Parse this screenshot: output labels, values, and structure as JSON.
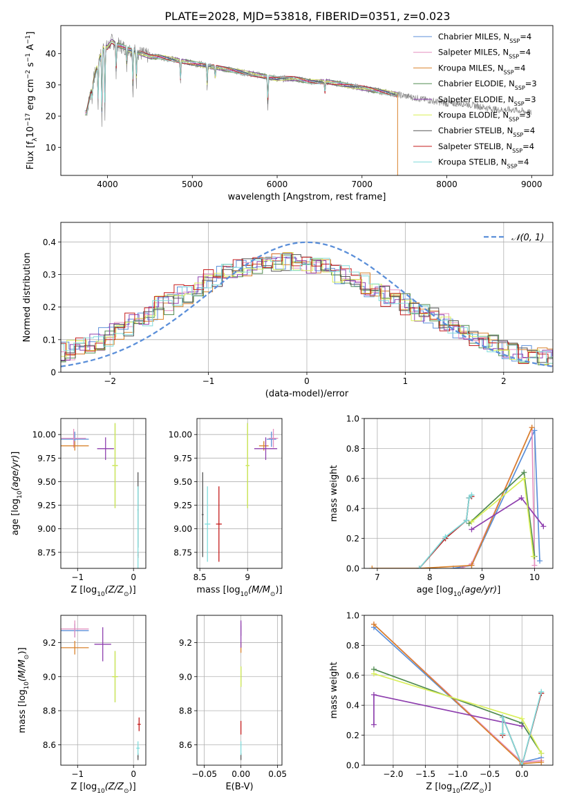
{
  "figure_title": "PLATE=2028, MJD=53818, FIBERID=0351, z=0.023",
  "colors": {
    "chabrier_miles": "#5b8fd9",
    "salpeter_miles": "#e58fbf",
    "kroupa_miles": "#d9822b",
    "chabrier_elodie": "#4f8a4f",
    "salpeter_elodie": "#8e3fae",
    "kroupa_elodie": "#d9ef5a",
    "chabrier_stelib": "#555555",
    "salpeter_stelib": "#c41a1a",
    "kroupa_stelib": "#7fdcdc",
    "normal_curve": "#5b8fd9",
    "grid": "#b0b0b0"
  },
  "chart_data": [
    {
      "id": "spectrum",
      "type": "line",
      "title": "PLATE=2028, MJD=53818, FIBERID=0351, z=0.023",
      "xlabel": "wavelength [Angstrom, rest frame]",
      "ylabel": "Flux [f_λ 10^-17 erg cm^-2 s^-1 A^-1]",
      "xlim": [
        3450,
        9250
      ],
      "ylim": [
        1,
        49
      ],
      "xticks": [
        4000,
        5000,
        6000,
        7000,
        8000,
        9000
      ],
      "yticks": [
        10,
        20,
        30,
        40
      ],
      "grid": false,
      "legend_position": "top-right",
      "legend": [
        {
          "base": "Chabrier MILES, N",
          "sub": "SSP",
          "tail": "=4",
          "key": "chabrier_miles"
        },
        {
          "base": "Salpeter MILES, N",
          "sub": "SSP",
          "tail": "=4",
          "key": "salpeter_miles"
        },
        {
          "base": "Kroupa MILES, N",
          "sub": "SSP",
          "tail": "=4",
          "key": "kroupa_miles"
        },
        {
          "base": "Chabrier ELODIE, N",
          "sub": "SSP",
          "tail": "=3",
          "key": "chabrier_elodie"
        },
        {
          "base": "Salpeter ELODIE, N",
          "sub": "SSP",
          "tail": "=3",
          "key": "salpeter_elodie"
        },
        {
          "base": "Kroupa ELODIE, N",
          "sub": "SSP",
          "tail": "=3",
          "key": "kroupa_elodie"
        },
        {
          "base": "Chabrier STELIB, N",
          "sub": "SSP",
          "tail": "=4",
          "key": "chabrier_stelib"
        },
        {
          "base": "Salpeter STELIB, N",
          "sub": "SSP",
          "tail": "=4",
          "key": "salpeter_stelib"
        },
        {
          "base": "Kroupa STELIB, N",
          "sub": "SSP",
          "tail": "=4",
          "key": "kroupa_stelib"
        }
      ],
      "continuum": [
        [
          3750,
          21
        ],
        [
          3800,
          27
        ],
        [
          3850,
          33
        ],
        [
          3900,
          38
        ],
        [
          3950,
          42
        ],
        [
          4000,
          42
        ],
        [
          4050,
          44
        ],
        [
          4100,
          43
        ],
        [
          4200,
          42
        ],
        [
          4300,
          41
        ],
        [
          4400,
          40
        ],
        [
          4500,
          39
        ],
        [
          4600,
          39
        ],
        [
          4800,
          38
        ],
        [
          5000,
          37
        ],
        [
          5200,
          36
        ],
        [
          5400,
          35
        ],
        [
          5600,
          34
        ],
        [
          5800,
          33
        ],
        [
          6000,
          32
        ],
        [
          6200,
          32
        ],
        [
          6400,
          31
        ],
        [
          6600,
          31
        ],
        [
          6800,
          30
        ],
        [
          7000,
          29
        ],
        [
          7200,
          28
        ],
        [
          7400,
          27
        ],
        [
          7600,
          26
        ],
        [
          7800,
          25
        ],
        [
          8000,
          24
        ],
        [
          8200,
          24
        ],
        [
          8400,
          23
        ],
        [
          8600,
          22
        ],
        [
          8800,
          22
        ],
        [
          9000,
          21
        ]
      ],
      "absorption_features": [
        [
          3820,
          4
        ],
        [
          3889,
          14
        ],
        [
          3934,
          24
        ],
        [
          3969,
          22
        ],
        [
          4102,
          10
        ],
        [
          4227,
          6
        ],
        [
          4300,
          14
        ],
        [
          4341,
          10
        ],
        [
          4861,
          7
        ],
        [
          5175,
          7
        ],
        [
          5270,
          4
        ],
        [
          5890,
          10
        ],
        [
          6563,
          4
        ]
      ],
      "model_wavelength_range": [
        3730,
        7420
      ],
      "observed_wavelength_range": [
        3750,
        9000
      ]
    },
    {
      "id": "residuals",
      "type": "histogram",
      "xlabel": "(data-model)/error",
      "ylabel": "Normed distribution",
      "xlim": [
        -2.5,
        2.5
      ],
      "ylim": [
        0,
        0.46
      ],
      "xticks": [
        -2,
        -1,
        0,
        1,
        2
      ],
      "yticks": [
        0.0,
        0.1,
        0.2,
        0.3,
        0.4
      ],
      "grid": true,
      "legend_position": "top-right",
      "legend": [
        {
          "label": "𝒩(0, 1)",
          "key": "normal_curve",
          "style": "dashed"
        }
      ],
      "bin_width": 0.1,
      "reference_profile": [
        0.04,
        0.045,
        0.05,
        0.055,
        0.06,
        0.065,
        0.075,
        0.085,
        0.095,
        0.11,
        0.125,
        0.14,
        0.155,
        0.17,
        0.19,
        0.205,
        0.225,
        0.24,
        0.26,
        0.275,
        0.29,
        0.305,
        0.315,
        0.325,
        0.33,
        0.335,
        0.34,
        0.34,
        0.34,
        0.335,
        0.33,
        0.325,
        0.315,
        0.3,
        0.29,
        0.275,
        0.26,
        0.245,
        0.23,
        0.215,
        0.2,
        0.185,
        0.17,
        0.155,
        0.14,
        0.125,
        0.11,
        0.1,
        0.09,
        0.08,
        0.07,
        0.06,
        0.055,
        0.05,
        0.045,
        0.04,
        0.035,
        0.03,
        0.025,
        0.02
      ]
    },
    {
      "id": "age_vs_Z",
      "type": "errorbar",
      "xlabel": "Z [log10(Z/Z⊙)]",
      "ylabel": "age  [log10(age/yr)]",
      "xlim": [
        -1.3,
        0.22
      ],
      "ylim": [
        8.58,
        10.17
      ],
      "xticks": [
        -1,
        0
      ],
      "yticks": [
        8.75,
        9.0,
        9.25,
        9.5,
        9.75,
        10.0
      ],
      "ytick_labels": [
        "8.75",
        "9.00",
        "9.25",
        "9.50",
        "9.75",
        "10.00"
      ],
      "grid": true,
      "points": [
        {
          "key": "chabrier_miles",
          "x": -1.05,
          "y": 9.95,
          "xerr": 0.25,
          "yerr": 0.08
        },
        {
          "key": "salpeter_miles",
          "x": -1.07,
          "y": 9.96,
          "xerr": 0.22,
          "yerr": 0.1
        },
        {
          "key": "kroupa_miles",
          "x": -1.05,
          "y": 9.88,
          "xerr": 0.25,
          "yerr": 0.05
        },
        {
          "key": "chabrier_elodie",
          "x": -0.33,
          "y": 9.67,
          "xerr": 0.05,
          "yerr": 0.45
        },
        {
          "key": "salpeter_elodie",
          "x": -0.5,
          "y": 9.85,
          "xerr": 0.15,
          "yerr": 0.12
        },
        {
          "key": "kroupa_elodie",
          "x": -0.33,
          "y": 9.67,
          "xerr": 0.05,
          "yerr": 0.45
        },
        {
          "key": "chabrier_stelib",
          "x": 0.08,
          "y": 9.2,
          "xerr": 0.01,
          "yerr": 0.4
        },
        {
          "key": "salpeter_stelib",
          "x": 0.08,
          "y": 8.72,
          "xerr": 0.01,
          "yerr": 0.03
        },
        {
          "key": "kroupa_stelib",
          "x": 0.08,
          "y": 9.0,
          "xerr": 0.01,
          "yerr": 0.45
        }
      ]
    },
    {
      "id": "age_vs_mass",
      "type": "errorbar",
      "xlabel": "mass [log10(M/M⊙)]",
      "ylabel": "",
      "xlim": [
        8.47,
        9.36
      ],
      "ylim": [
        8.58,
        10.17
      ],
      "xticks": [
        8.5,
        9.0
      ],
      "yticks": [
        8.75,
        9.0,
        9.25,
        9.5,
        9.75,
        10.0
      ],
      "ytick_labels": [
        "8.75",
        "9.00",
        "9.25",
        "9.50",
        "9.75",
        "10.00"
      ],
      "grid": true,
      "points": [
        {
          "key": "chabrier_miles",
          "x": 9.25,
          "y": 9.95,
          "xerr": 0.05,
          "yerr": 0.08
        },
        {
          "key": "salpeter_miles",
          "x": 9.27,
          "y": 9.96,
          "xerr": 0.05,
          "yerr": 0.1
        },
        {
          "key": "kroupa_miles",
          "x": 9.17,
          "y": 9.88,
          "xerr": 0.05,
          "yerr": 0.05
        },
        {
          "key": "chabrier_elodie",
          "x": 9.0,
          "y": 9.67,
          "xerr": 0.02,
          "yerr": 0.45
        },
        {
          "key": "salpeter_elodie",
          "x": 9.19,
          "y": 9.85,
          "xerr": 0.12,
          "yerr": 0.12
        },
        {
          "key": "kroupa_elodie",
          "x": 9.0,
          "y": 9.67,
          "xerr": 0.02,
          "yerr": 0.45
        },
        {
          "key": "chabrier_stelib",
          "x": 8.53,
          "y": 9.15,
          "xerr": 0.01,
          "yerr": 0.45
        },
        {
          "key": "salpeter_stelib",
          "x": 8.7,
          "y": 9.05,
          "xerr": 0.03,
          "yerr": 0.4
        },
        {
          "key": "kroupa_stelib",
          "x": 8.58,
          "y": 9.05,
          "xerr": 0.03,
          "yerr": 0.4
        }
      ]
    },
    {
      "id": "weight_vs_age",
      "type": "line",
      "xlabel": "age  [log10(age/yr)]",
      "ylabel": "mass weight",
      "xlim": [
        6.75,
        10.35
      ],
      "ylim": [
        0,
        1.0
      ],
      "xticks": [
        7,
        8,
        9,
        10
      ],
      "yticks": [
        0.0,
        0.2,
        0.4,
        0.6,
        0.8,
        1.0
      ],
      "ytick_labels": [
        "0.0",
        "0.2",
        "0.4",
        "0.6",
        "0.8",
        "1.0"
      ],
      "grid": true,
      "series": [
        {
          "key": "chabrier_miles",
          "x": [
            8.45,
            8.8,
            10.0,
            10.1
          ],
          "y": [
            0.0,
            0.02,
            0.92,
            0.05
          ]
        },
        {
          "key": "salpeter_miles",
          "x": [
            8.6,
            8.8,
            9.95,
            10.0
          ],
          "y": [
            0.0,
            0.03,
            0.94,
            0.02
          ]
        },
        {
          "key": "kroupa_miles",
          "x": [
            6.9,
            7.8,
            8.8,
            9.95
          ],
          "y": [
            0.0,
            0.0,
            0.02,
            0.94
          ]
        },
        {
          "key": "chabrier_elodie",
          "x": [
            8.75,
            9.8,
            10.0
          ],
          "y": [
            0.3,
            0.64,
            0.08
          ]
        },
        {
          "key": "salpeter_elodie",
          "x": [
            8.8,
            9.75,
            10.17
          ],
          "y": [
            0.26,
            0.47,
            0.28
          ]
        },
        {
          "key": "kroupa_elodie",
          "x": [
            8.8,
            9.8,
            9.98
          ],
          "y": [
            0.31,
            0.6,
            0.08
          ]
        },
        {
          "key": "chabrier_stelib",
          "x": [
            7.8,
            8.3,
            8.7,
            8.75,
            8.8
          ],
          "y": [
            0.0,
            0.2,
            0.32,
            0.47,
            0.48
          ]
        },
        {
          "key": "salpeter_stelib",
          "x": [
            7.8,
            8.3,
            8.7,
            8.75,
            8.8
          ],
          "y": [
            0.0,
            0.2,
            0.32,
            0.47,
            0.48
          ]
        },
        {
          "key": "kroupa_stelib",
          "x": [
            7.8,
            8.3,
            8.7,
            8.75,
            8.8
          ],
          "y": [
            0.0,
            0.21,
            0.32,
            0.47,
            0.49
          ]
        }
      ]
    },
    {
      "id": "mass_vs_Z",
      "type": "errorbar",
      "xlabel": "Z [log10(Z/Z⊙)]",
      "ylabel": "mass [log10(M/M⊙)]",
      "xlim": [
        -1.3,
        0.22
      ],
      "ylim": [
        8.48,
        9.36
      ],
      "xticks": [
        -1,
        0
      ],
      "yticks": [
        8.6,
        8.8,
        9.0,
        9.2
      ],
      "ytick_labels": [
        "8.6",
        "8.8",
        "9.0",
        "9.2"
      ],
      "grid": true,
      "points": [
        {
          "key": "chabrier_miles",
          "x": -1.05,
          "y": 9.27,
          "xerr": 0.25,
          "yerr": 0.04
        },
        {
          "key": "salpeter_miles",
          "x": -1.05,
          "y": 9.28,
          "xerr": 0.25,
          "yerr": 0.05
        },
        {
          "key": "kroupa_miles",
          "x": -1.05,
          "y": 9.17,
          "xerr": 0.25,
          "yerr": 0.04
        },
        {
          "key": "chabrier_elodie",
          "x": -0.33,
          "y": 9.0,
          "xerr": 0.05,
          "yerr": 0.15
        },
        {
          "key": "salpeter_elodie",
          "x": -0.55,
          "y": 9.19,
          "xerr": 0.15,
          "yerr": 0.1
        },
        {
          "key": "kroupa_elodie",
          "x": -0.33,
          "y": 9.0,
          "xerr": 0.05,
          "yerr": 0.15
        },
        {
          "key": "chabrier_stelib",
          "x": 0.08,
          "y": 8.53,
          "xerr": 0.01,
          "yerr": 0.02
        },
        {
          "key": "salpeter_stelib",
          "x": 0.1,
          "y": 8.72,
          "xerr": 0.03,
          "yerr": 0.04
        },
        {
          "key": "kroupa_stelib",
          "x": 0.08,
          "y": 8.58,
          "xerr": 0.03,
          "yerr": 0.04
        }
      ]
    },
    {
      "id": "mass_vs_ebv",
      "type": "errorbar",
      "xlabel": "E(B-V)",
      "ylabel": "",
      "xlim": [
        -0.06,
        0.056
      ],
      "ylim": [
        8.48,
        9.36
      ],
      "xticks": [
        -0.05,
        0.0,
        0.05
      ],
      "xtick_labels": [
        "−0.05",
        "0.00",
        "0.05"
      ],
      "yticks": [
        8.6,
        8.8,
        9.0,
        9.2
      ],
      "ytick_labels": [
        "8.6",
        "8.8",
        "9.0",
        "9.2"
      ],
      "grid": true,
      "points": [
        {
          "key": "chabrier_miles",
          "x": 0.0,
          "y": 9.27,
          "xerr": 0.0,
          "yerr": 0.03
        },
        {
          "key": "salpeter_miles",
          "x": 0.0,
          "y": 9.28,
          "xerr": 0.0,
          "yerr": 0.04
        },
        {
          "key": "kroupa_miles",
          "x": 0.0,
          "y": 9.17,
          "xerr": 0.0,
          "yerr": 0.03
        },
        {
          "key": "chabrier_elodie",
          "x": 0.0,
          "y": 9.0,
          "xerr": 0.0,
          "yerr": 0.06
        },
        {
          "key": "salpeter_elodie",
          "x": 0.0,
          "y": 9.25,
          "xerr": 0.0,
          "yerr": 0.08
        },
        {
          "key": "kroupa_elodie",
          "x": 0.0,
          "y": 9.0,
          "xerr": 0.0,
          "yerr": 0.06
        },
        {
          "key": "chabrier_stelib",
          "x": 0.0,
          "y": 8.53,
          "xerr": 0.0,
          "yerr": 0.02
        },
        {
          "key": "salpeter_stelib",
          "x": 0.0,
          "y": 8.7,
          "xerr": 0.0,
          "yerr": 0.04
        },
        {
          "key": "kroupa_stelib",
          "x": 0.0,
          "y": 8.58,
          "xerr": 0.0,
          "yerr": 0.04
        }
      ]
    },
    {
      "id": "weight_vs_Z",
      "type": "line",
      "xlabel": "Z [log10(Z/Z⊙)]",
      "ylabel": "mass weight",
      "xlim": [
        -2.45,
        0.48
      ],
      "ylim": [
        0,
        1.0
      ],
      "xticks": [
        -2.0,
        -1.5,
        -1.0,
        -0.5,
        0.0
      ],
      "xtick_labels": [
        "−2.0",
        "−1.5",
        "−1.0",
        "−0.5",
        "0.0"
      ],
      "yticks": [
        0.0,
        0.2,
        0.4,
        0.6,
        0.8,
        1.0
      ],
      "ytick_labels": [
        "0.0",
        "0.2",
        "0.4",
        "0.6",
        "0.8",
        "1.0"
      ],
      "grid": true,
      "series": [
        {
          "key": "chabrier_miles",
          "x": [
            -2.3,
            0.0,
            0.3
          ],
          "y": [
            0.92,
            0.02,
            0.05
          ]
        },
        {
          "key": "salpeter_miles",
          "x": [
            -2.3,
            0.0,
            0.3
          ],
          "y": [
            0.94,
            0.02,
            0.03
          ]
        },
        {
          "key": "kroupa_miles",
          "x": [
            -2.3,
            0.0,
            0.3
          ],
          "y": [
            0.94,
            0.01,
            0.02
          ]
        },
        {
          "key": "chabrier_elodie",
          "x": [
            -2.3,
            0.0,
            0.3
          ],
          "y": [
            0.64,
            0.28,
            0.08
          ]
        },
        {
          "key": "salpeter_elodie",
          "x": [
            -2.3,
            -2.3,
            0.0
          ],
          "y": [
            0.27,
            0.47,
            0.26
          ]
        },
        {
          "key": "kroupa_elodie",
          "x": [
            -2.3,
            0.0,
            0.3
          ],
          "y": [
            0.61,
            0.31,
            0.08
          ]
        },
        {
          "key": "chabrier_stelib",
          "x": [
            -0.3,
            -0.3,
            0.0,
            0.3
          ],
          "y": [
            0.2,
            0.32,
            0.0,
            0.48
          ]
        },
        {
          "key": "salpeter_stelib",
          "x": [
            -0.3,
            -0.3,
            0.0,
            0.3
          ],
          "y": [
            0.2,
            0.32,
            0.0,
            0.48
          ]
        },
        {
          "key": "kroupa_stelib",
          "x": [
            -0.3,
            -0.3,
            0.0,
            0.3
          ],
          "y": [
            0.21,
            0.32,
            0.0,
            0.49
          ]
        }
      ]
    }
  ]
}
